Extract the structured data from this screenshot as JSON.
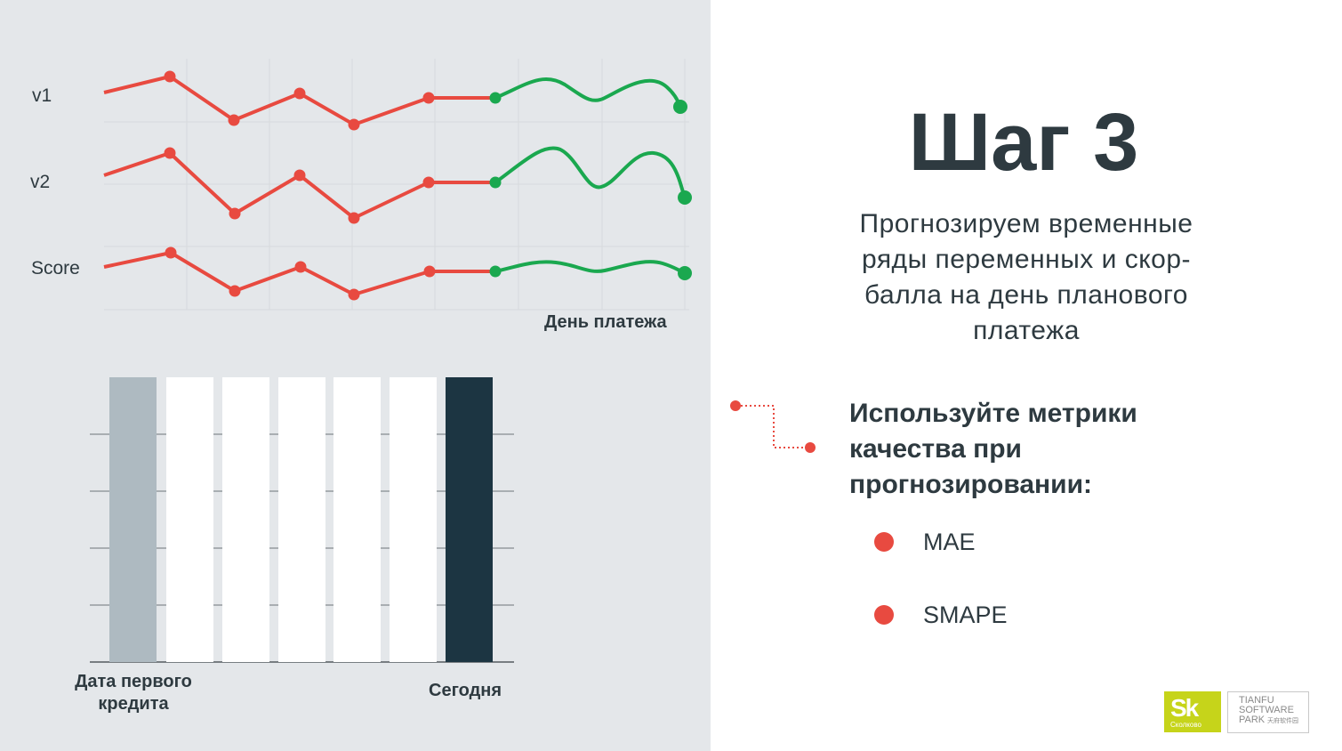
{
  "line_chart": {
    "series": [
      {
        "name": "v1"
      },
      {
        "name": "v2"
      },
      {
        "name": "Score"
      }
    ],
    "x_label": "День платежа",
    "history_color": "#e84a40",
    "forecast_color": "#1aa84f"
  },
  "bar_chart": {
    "left_label": "Дата первого\nкредита",
    "right_label": "Сегодня",
    "colors": [
      "#aebac1",
      "#ffffff",
      "#ffffff",
      "#ffffff",
      "#ffffff",
      "#ffffff",
      "#1c3542"
    ]
  },
  "title": "Шаг 3",
  "subtitle": "Прогнозируем временные ряды переменных и скор-балла на день планового платежа",
  "tip": "Используйте метрики качества при прогнозировании:",
  "metrics": [
    "MAE",
    "SMAPE"
  ],
  "logos": {
    "skolkovo": "Sk",
    "skolkovo_sub": "Сколково",
    "tianfu_1": "TIANFU",
    "tianfu_2": "SOFTWARE",
    "tianfu_3": "PARK",
    "tianfu_cn": "天府软件园"
  }
}
